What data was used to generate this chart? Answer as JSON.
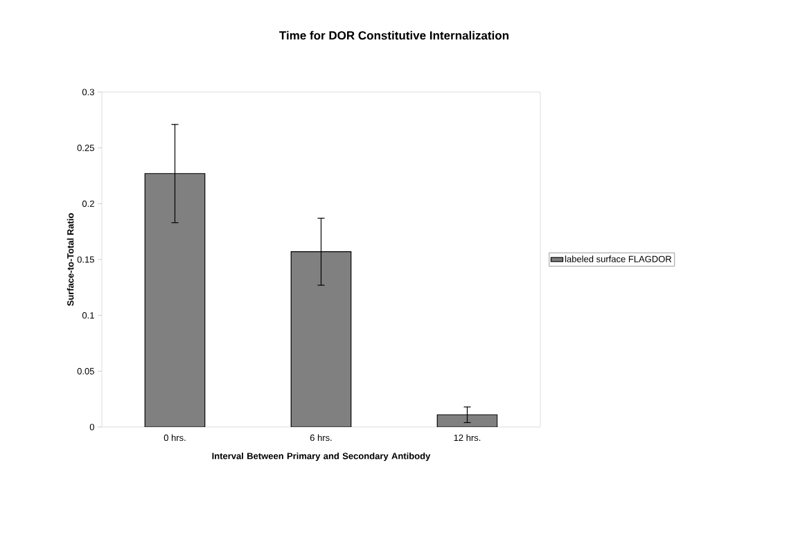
{
  "chart_data": {
    "type": "bar",
    "title": "Time for DOR Constitutive Internalization",
    "xlabel": "Interval Between Primary and Secondary Antibody",
    "ylabel": "Surface-to-Total Ratio",
    "categories": [
      "0 hrs.",
      "6 hrs.",
      "12 hrs."
    ],
    "series": [
      {
        "name": "labeled surface FLAGDOR",
        "color": "#808080",
        "values": [
          0.227,
          0.157,
          0.011
        ],
        "errors": [
          0.044,
          0.03,
          0.007
        ]
      }
    ],
    "ylim": [
      0,
      0.3
    ],
    "yticks": [
      0,
      0.05,
      0.1,
      0.15,
      0.2,
      0.25,
      0.3
    ],
    "legend": "right"
  }
}
